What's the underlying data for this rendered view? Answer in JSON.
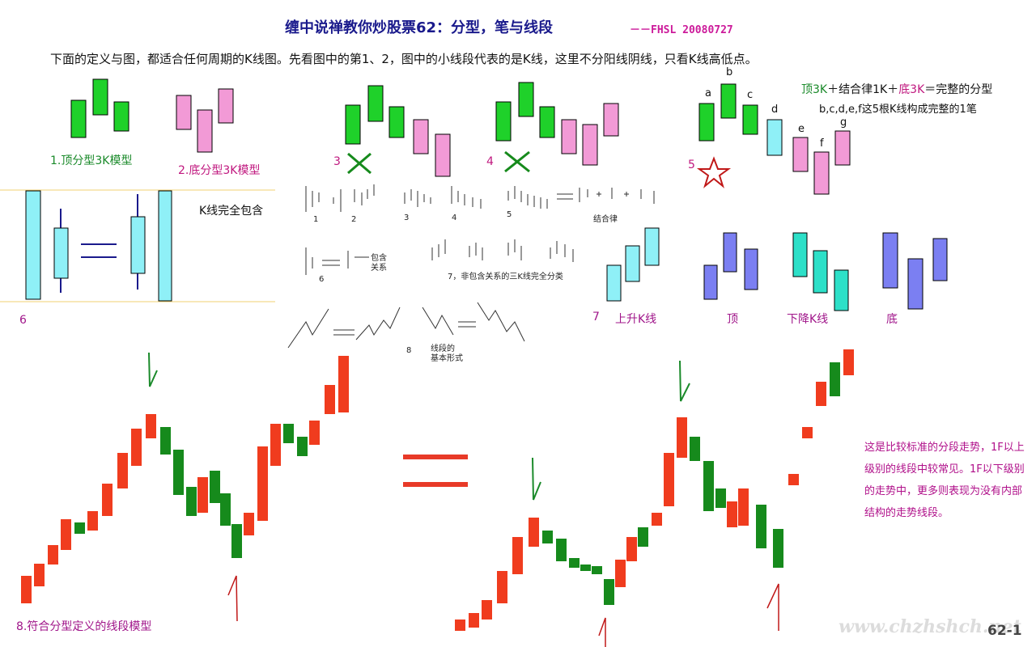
{
  "header": {
    "title": "缠中说禅教你炒股票62：分型，笔与线段",
    "suffix": "－－FHSL 20080727",
    "intro": "下面的定义与图，都适合任何周期的K线图。先看图中的第1、2，图中的小线段代表的是K线，这里不分阳线阴线，只看K线高低点。"
  },
  "figures": {
    "f1_label": "1.顶分型3K模型",
    "f2_label": "2.底分型3K模型",
    "f3_num": "3",
    "f4_num": "4",
    "f5_num": "5",
    "f5_letters": [
      "a",
      "b",
      "c",
      "d",
      "e",
      "f",
      "g"
    ],
    "f5_formula_a": "顶3K",
    "f5_formula_b": "＋结合律1K＋",
    "f5_formula_c": "底3K",
    "f5_formula_d": "＝完整的分型",
    "f5_note": "b,c,d,e,f这5根K线构成完整的1笔",
    "f6_num": "6",
    "f6_label": "K线完全包含",
    "mini_nums": [
      "1",
      "2",
      "3",
      "4",
      "5"
    ],
    "mini_assoc": "结合律",
    "mini_six": "6",
    "mini_include_a": "包含",
    "mini_include_b": "关系",
    "mini_seven": "7，非包含关系的三K线完全分类",
    "f7_num": "7",
    "f7_rise": "上升K线",
    "f7_top": "顶",
    "f7_fall": "下降K线",
    "f7_bottom": "底",
    "f8_num": "8",
    "f8_form_a": "线段的",
    "f8_form_b": "基本形式",
    "f8_bottom_label": "8.符合分型定义的线段模型",
    "note": "这是比较标准的分段走势，1F以上级别的线段中较常见。1F以下级别的走势中，更多则表现为没有内部结构的走势线段。",
    "page_num": "62-1",
    "watermark": "www.chzhshch.net"
  },
  "colors": {
    "green": "#1fd12a",
    "green_dark": "#1a8a2a",
    "pink": "#f29ad6",
    "cyan": "#8ff0f7",
    "blue": "#7b7ff2",
    "teal": "#2de0c8",
    "red": "#f03c1e",
    "dark_green": "#168a1c"
  }
}
